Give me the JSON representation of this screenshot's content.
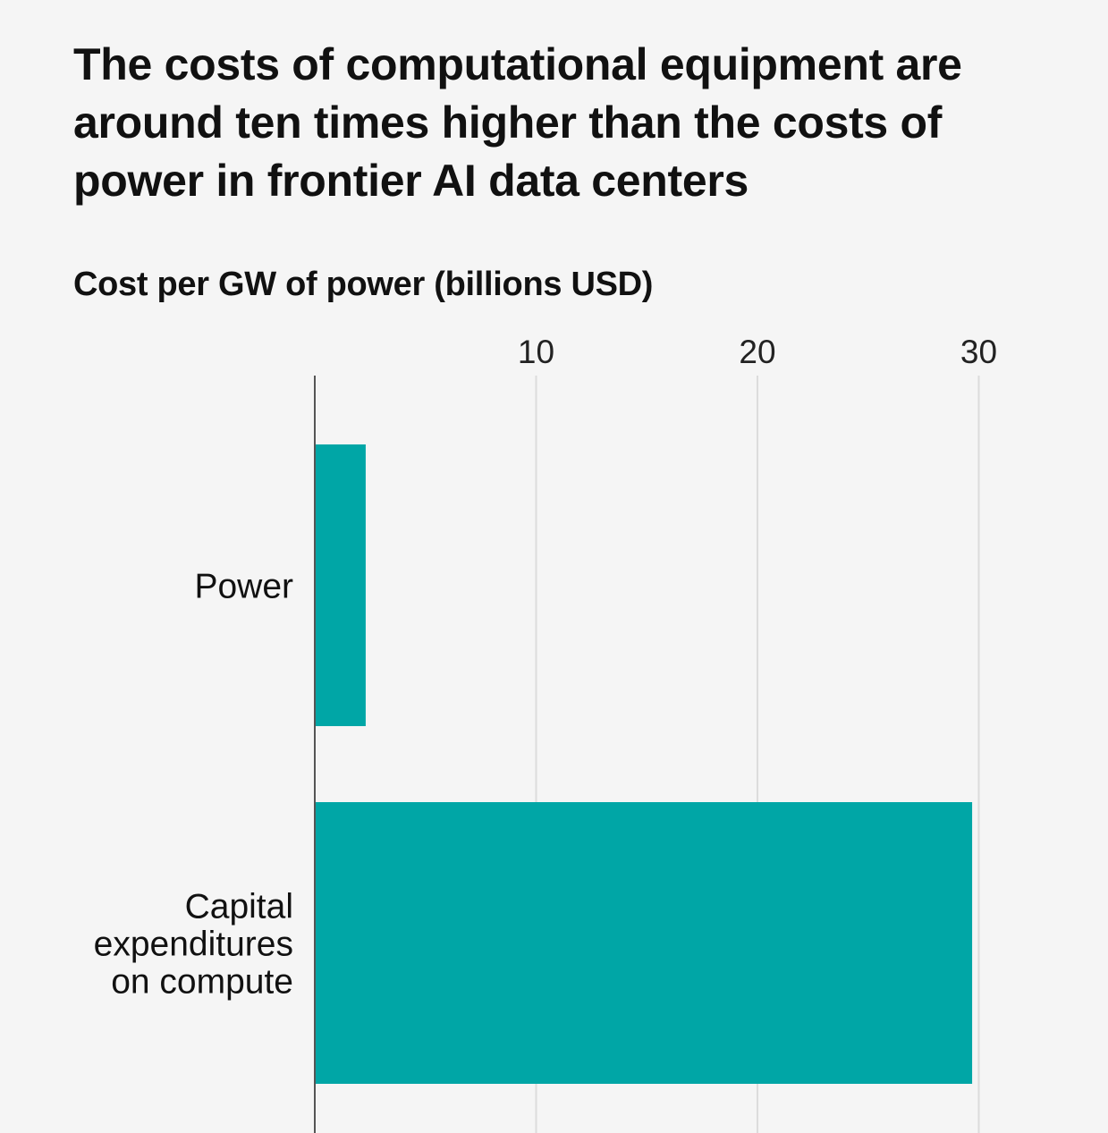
{
  "chart_data": {
    "type": "bar",
    "orientation": "horizontal",
    "title": "The costs of computational equipment are around ten times higher than the costs of power in frontier AI data centers",
    "subtitle": "Cost per GW of power (billions USD)",
    "categories": [
      "Power",
      "Capital expenditures on compute"
    ],
    "category_lines": [
      [
        "Power"
      ],
      [
        "Capital",
        "expenditures",
        "on compute"
      ]
    ],
    "values": [
      2.3,
      29.7
    ],
    "xlim": [
      0,
      33
    ],
    "ticks": [
      10,
      20,
      30
    ],
    "tick_labels": [
      "10",
      "20",
      "30"
    ],
    "grid": true,
    "bar_color": "#00a6a6",
    "grid_color": "#dcdcdc",
    "axis_color": "#555555"
  }
}
